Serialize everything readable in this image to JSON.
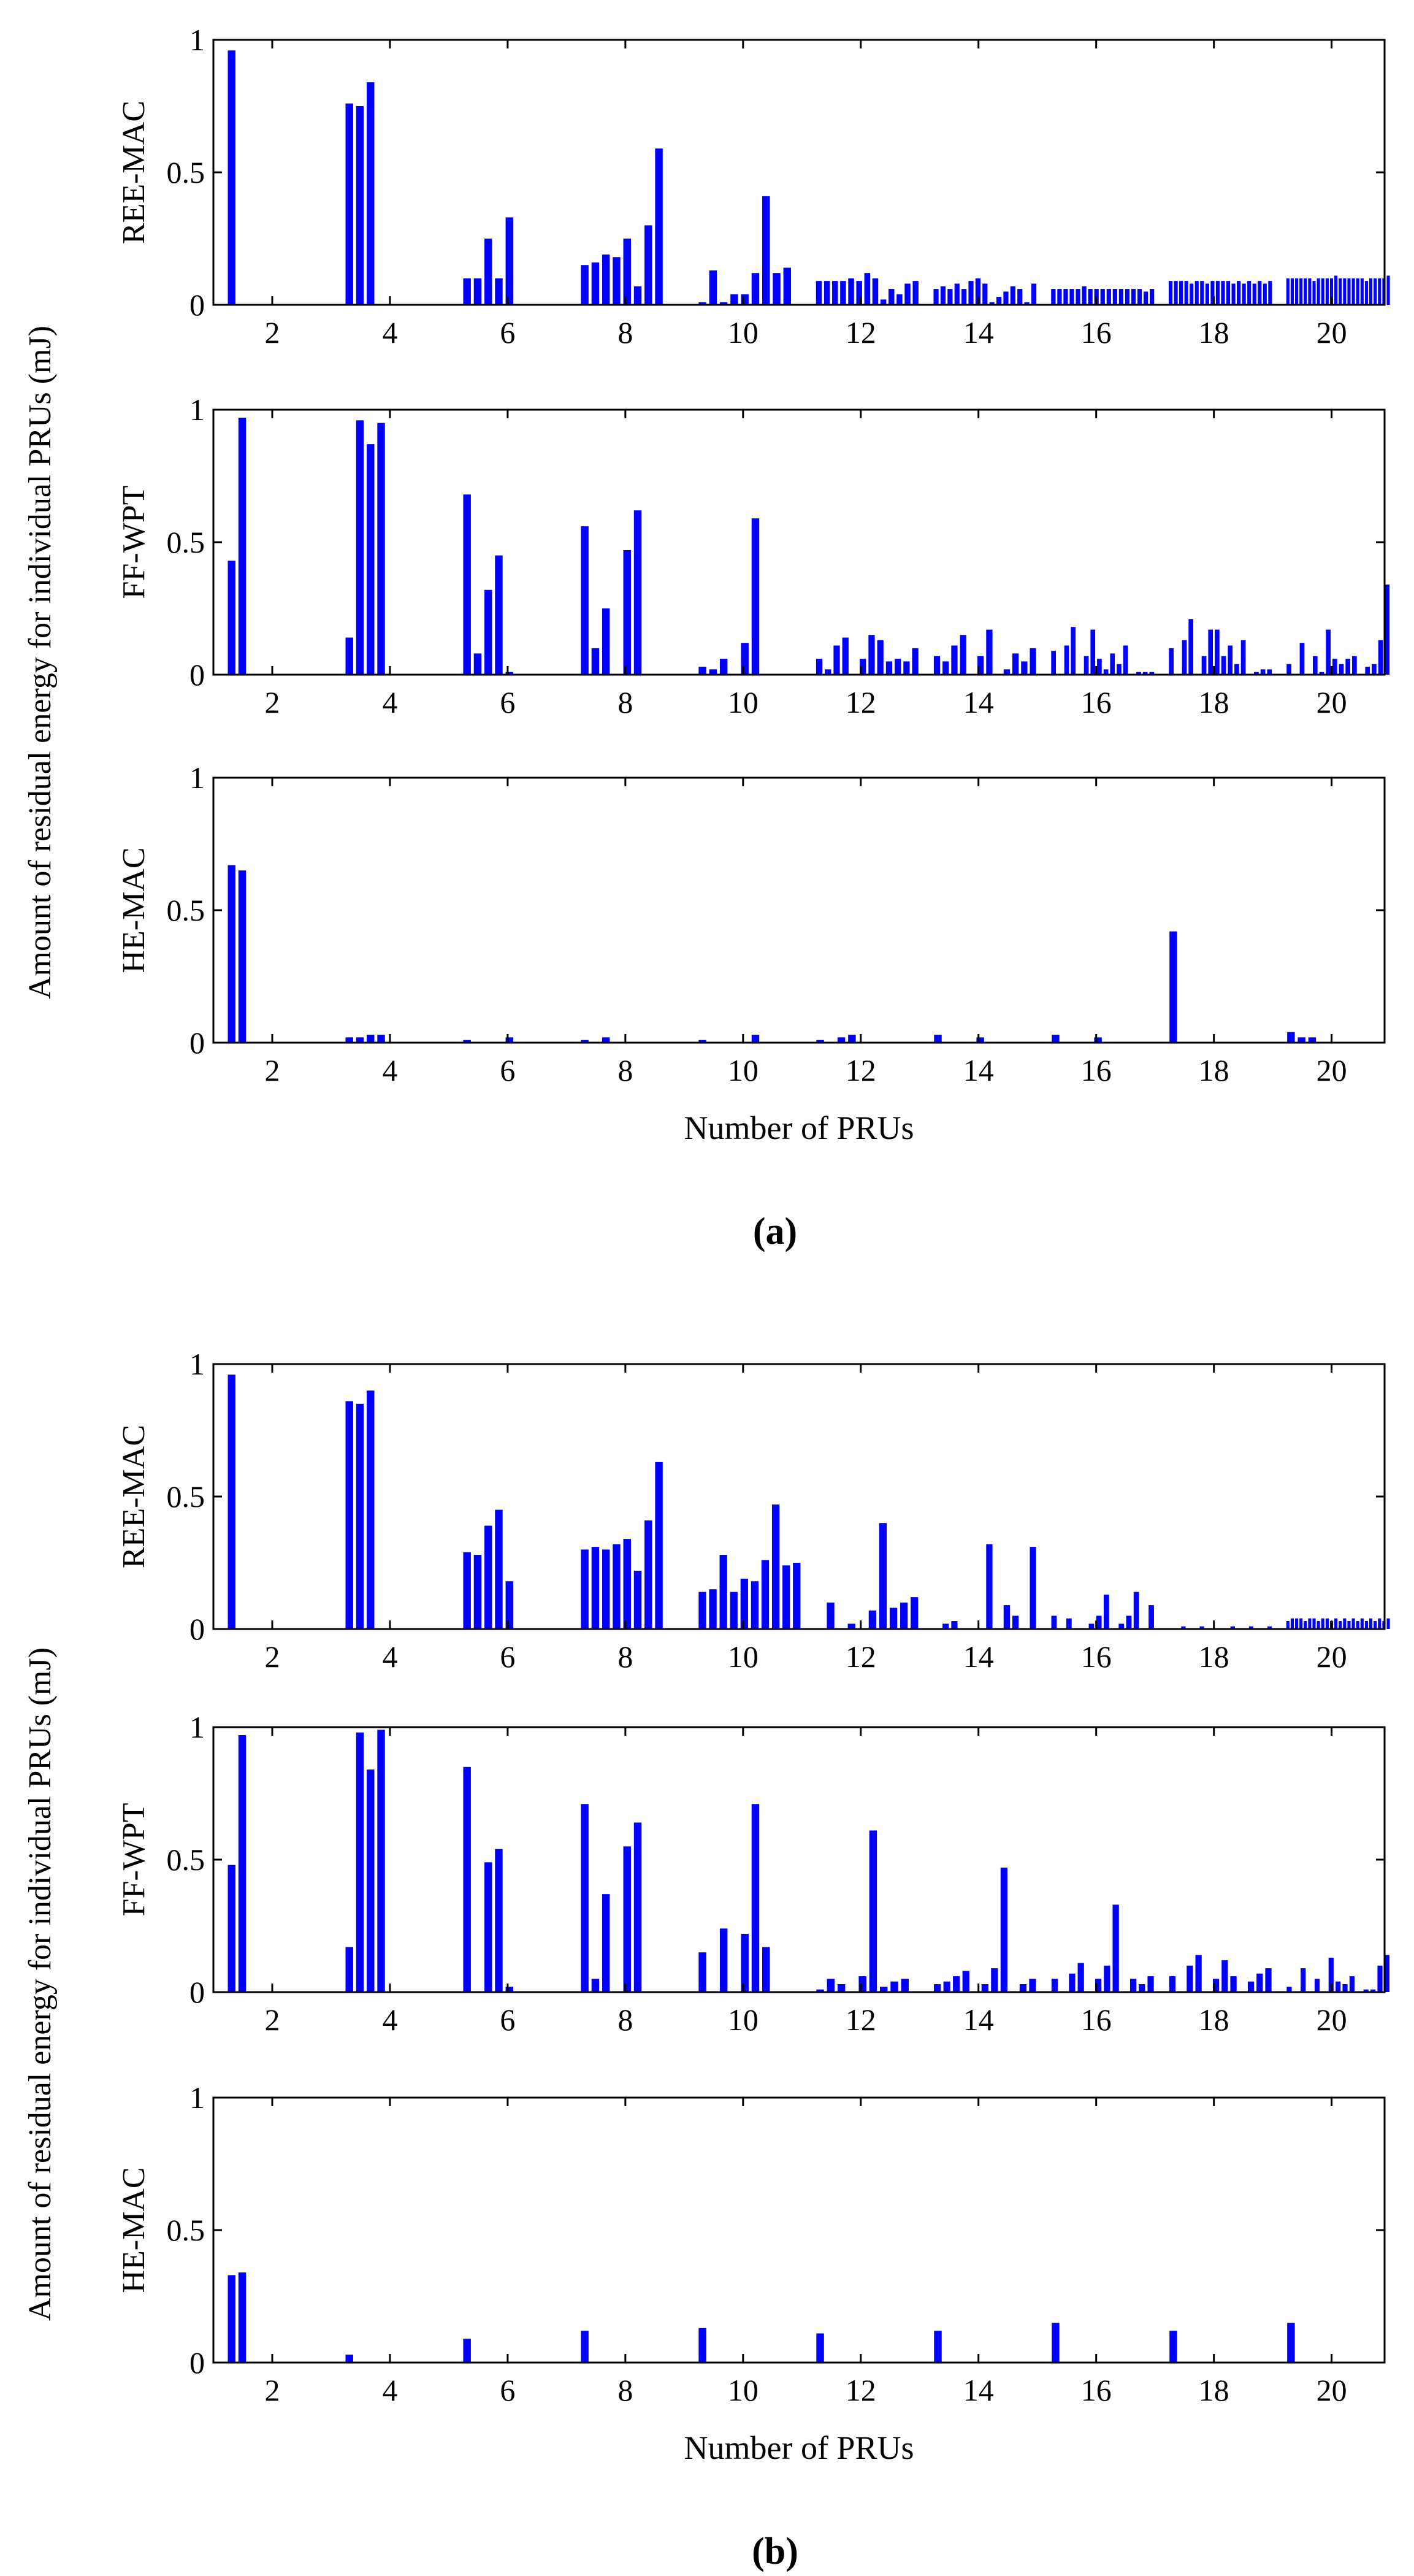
{
  "chart_data": [
    {
      "type": "bar",
      "panel": "a",
      "caption": "(a)",
      "title": "",
      "ylabel_shared": "Amount of residual energy for individual PRUs (mJ)",
      "xlabel": "Number of PRUs",
      "xticks": [
        2,
        4,
        6,
        8,
        10,
        12,
        14,
        16,
        18,
        20
      ],
      "xlim": [
        1,
        20.9
      ],
      "ylim": [
        0,
        1
      ],
      "yticks": [
        0,
        0.5,
        1
      ],
      "ytick_labels": [
        "0",
        "0.5",
        "1"
      ],
      "grid": false,
      "legend": "none",
      "series": [
        {
          "name": "REE-MAC",
          "groups": [
            {
              "x": 1,
              "values": [
                0.96
              ]
            },
            {
              "x": 3,
              "values": [
                0.76,
                0.75,
                0.84
              ]
            },
            {
              "x": 5,
              "values": [
                0.1,
                0.1,
                0.25,
                0.1,
                0.33
              ]
            },
            {
              "x": 7,
              "values": [
                0.15,
                0.16,
                0.19,
                0.18,
                0.25,
                0.07,
                0.3,
                0.59
              ]
            },
            {
              "x": 9,
              "values": [
                0.01,
                0.13,
                0.01,
                0.04,
                0.04,
                0.12,
                0.41,
                0.12,
                0.14
              ]
            },
            {
              "x": 11,
              "values": [
                0.09,
                0.09,
                0.09,
                0.09,
                0.1,
                0.09,
                0.12,
                0.1,
                0.02,
                0.06,
                0.04,
                0.08,
                0.09
              ]
            },
            {
              "x": 13,
              "values": [
                0.06,
                0.07,
                0.06,
                0.08,
                0.06,
                0.09,
                0.1,
                0.08,
                0.01,
                0.03,
                0.05,
                0.07,
                0.06,
                0.01,
                0.08
              ]
            },
            {
              "x": 15,
              "values": [
                0.06,
                0.06,
                0.06,
                0.06,
                0.06,
                0.07,
                0.06,
                0.06,
                0.06,
                0.06,
                0.06,
                0.06,
                0.06,
                0.06,
                0.06,
                0.05,
                0.06
              ]
            },
            {
              "x": 17,
              "values": [
                0.09,
                0.09,
                0.09,
                0.09,
                0.08,
                0.09,
                0.09,
                0.08,
                0.09,
                0.09,
                0.09,
                0.09,
                0.08,
                0.09,
                0.08,
                0.09,
                0.08,
                0.09,
                0.08,
                0.09
              ]
            },
            {
              "x": 19,
              "values": [
                0.1,
                0.1,
                0.1,
                0.1,
                0.1,
                0.1,
                0.09,
                0.1,
                0.1,
                0.1,
                0.1,
                0.11,
                0.1,
                0.1,
                0.1,
                0.1,
                0.1,
                0.1,
                0.09,
                0.1,
                0.1,
                0.1,
                0.1,
                0.11
              ]
            }
          ]
        },
        {
          "name": "FF-WPT",
          "groups": [
            {
              "x": 1,
              "values": [
                0.43,
                0.97
              ]
            },
            {
              "x": 3,
              "values": [
                0.14,
                0.96,
                0.87,
                0.95
              ]
            },
            {
              "x": 5,
              "values": [
                0.68,
                0.08,
                0.32,
                0.45,
                0.01
              ]
            },
            {
              "x": 7,
              "values": [
                0.56,
                0.1,
                0.25,
                0.0,
                0.47,
                0.62
              ]
            },
            {
              "x": 9,
              "values": [
                0.03,
                0.02,
                0.06,
                0.0,
                0.12,
                0.59
              ]
            },
            {
              "x": 11,
              "values": [
                0.06,
                0.02,
                0.11,
                0.14,
                0.0,
                0.06,
                0.15,
                0.13,
                0.05,
                0.06,
                0.05,
                0.1
              ]
            },
            {
              "x": 13,
              "values": [
                0.07,
                0.05,
                0.11,
                0.15,
                0.0,
                0.07,
                0.17,
                0.0,
                0.02,
                0.08,
                0.05,
                0.1
              ]
            },
            {
              "x": 15,
              "values": [
                0.09,
                0.0,
                0.11,
                0.18,
                0.0,
                0.07,
                0.17,
                0.06,
                0.02,
                0.08,
                0.04,
                0.11,
                0.0,
                0.01,
                0.01,
                0.01
              ]
            },
            {
              "x": 17,
              "values": [
                0.1,
                0.0,
                0.13,
                0.21,
                0.0,
                0.07,
                0.17,
                0.17,
                0.07,
                0.11,
                0.04,
                0.13,
                0.0,
                0.01,
                0.02,
                0.02
              ]
            },
            {
              "x": 19,
              "values": [
                0.04,
                0.0,
                0.12,
                0.0,
                0.07,
                0.01,
                0.17,
                0.06,
                0.04,
                0.06,
                0.07,
                0.0,
                0.03,
                0.04,
                0.13,
                0.34
              ]
            }
          ]
        },
        {
          "name": "HE-MAC",
          "groups": [
            {
              "x": 1,
              "values": [
                0.67,
                0.65
              ]
            },
            {
              "x": 3,
              "values": [
                0.02,
                0.02,
                0.03,
                0.03
              ]
            },
            {
              "x": 5,
              "values": [
                0.01,
                0.0,
                0.0,
                0.0,
                0.02
              ]
            },
            {
              "x": 7,
              "values": [
                0.01,
                0.0,
                0.02
              ]
            },
            {
              "x": 9,
              "values": [
                0.01,
                0.0,
                0.0,
                0.0,
                0.0,
                0.03
              ]
            },
            {
              "x": 11,
              "values": [
                0.01,
                0.0,
                0.02,
                0.03
              ]
            },
            {
              "x": 13,
              "values": [
                0.03,
                0.0,
                0.0,
                0.0,
                0.02
              ]
            },
            {
              "x": 15,
              "values": [
                0.03,
                0.0,
                0.0,
                0.0,
                0.02
              ]
            },
            {
              "x": 17,
              "values": [
                0.42
              ]
            },
            {
              "x": 19,
              "values": [
                0.04,
                0.02,
                0.02
              ]
            }
          ]
        }
      ]
    },
    {
      "type": "bar",
      "panel": "b",
      "caption": "(b)",
      "title": "",
      "ylabel_shared": "Amount of residual energy for individual PRUs (mJ)",
      "xlabel": "Number of PRUs",
      "xticks": [
        2,
        4,
        6,
        8,
        10,
        12,
        14,
        16,
        18,
        20
      ],
      "xlim": [
        1,
        20.9
      ],
      "ylim": [
        0,
        1
      ],
      "yticks": [
        0,
        0.5,
        1
      ],
      "ytick_labels": [
        "0",
        "0.5",
        "1"
      ],
      "grid": false,
      "legend": "none",
      "series": [
        {
          "name": "REE-MAC",
          "groups": [
            {
              "x": 1,
              "values": [
                0.96
              ]
            },
            {
              "x": 3,
              "values": [
                0.86,
                0.85,
                0.9
              ]
            },
            {
              "x": 5,
              "values": [
                0.29,
                0.28,
                0.39,
                0.45,
                0.18
              ]
            },
            {
              "x": 7,
              "values": [
                0.3,
                0.31,
                0.3,
                0.32,
                0.34,
                0.22,
                0.41,
                0.63
              ]
            },
            {
              "x": 9,
              "values": [
                0.14,
                0.15,
                0.28,
                0.14,
                0.19,
                0.18,
                0.26,
                0.47,
                0.24,
                0.25
              ]
            },
            {
              "x": 11,
              "values": [
                0.0,
                0.1,
                0.0,
                0.02,
                0.0,
                0.07,
                0.4,
                0.08,
                0.1,
                0.12
              ]
            },
            {
              "x": 13,
              "values": [
                0.0,
                0.02,
                0.03,
                0.0,
                0.0,
                0.0,
                0.32,
                0.0,
                0.09,
                0.05,
                0.0,
                0.31
              ]
            },
            {
              "x": 15,
              "values": [
                0.05,
                0.0,
                0.04,
                0.0,
                0.0,
                0.02,
                0.05,
                0.13,
                0.0,
                0.02,
                0.05,
                0.14,
                0.0,
                0.09
              ]
            },
            {
              "x": 17,
              "values": [
                0.0,
                0.0,
                0.01,
                0.0,
                0.0,
                0.01,
                0.0,
                0.0,
                0.0,
                0.0,
                0.01,
                0.0,
                0.0,
                0.01,
                0.0,
                0.0,
                0.01
              ]
            },
            {
              "x": 19,
              "values": [
                0.03,
                0.04,
                0.04,
                0.04,
                0.03,
                0.04,
                0.04,
                0.03,
                0.04,
                0.04,
                0.03,
                0.04,
                0.03,
                0.04,
                0.03,
                0.04,
                0.03,
                0.04,
                0.03,
                0.04,
                0.03,
                0.04,
                0.03,
                0.04
              ]
            }
          ]
        },
        {
          "name": "FF-WPT",
          "groups": [
            {
              "x": 1,
              "values": [
                0.48,
                0.97
              ]
            },
            {
              "x": 3,
              "values": [
                0.17,
                0.98,
                0.84,
                0.99
              ]
            },
            {
              "x": 5,
              "values": [
                0.85,
                0.0,
                0.49,
                0.54,
                0.02
              ]
            },
            {
              "x": 7,
              "values": [
                0.71,
                0.05,
                0.37,
                0.0,
                0.55,
                0.64
              ]
            },
            {
              "x": 9,
              "values": [
                0.15,
                0.0,
                0.24,
                0.0,
                0.22,
                0.71,
                0.17
              ]
            },
            {
              "x": 11,
              "values": [
                0.01,
                0.05,
                0.03,
                0.0,
                0.06,
                0.61,
                0.02,
                0.04,
                0.05
              ]
            },
            {
              "x": 13,
              "values": [
                0.03,
                0.04,
                0.06,
                0.08,
                0.0,
                0.03,
                0.09,
                0.47,
                0.0,
                0.03,
                0.05
              ]
            },
            {
              "x": 15,
              "values": [
                0.05,
                0.0,
                0.07,
                0.11,
                0.0,
                0.05,
                0.1,
                0.33,
                0.0,
                0.05,
                0.03,
                0.06
              ]
            },
            {
              "x": 17,
              "values": [
                0.06,
                0.0,
                0.1,
                0.14,
                0.0,
                0.05,
                0.12,
                0.06,
                0.0,
                0.04,
                0.07,
                0.09
              ]
            },
            {
              "x": 19,
              "values": [
                0.02,
                0.0,
                0.09,
                0.0,
                0.05,
                0.0,
                0.13,
                0.04,
                0.03,
                0.06,
                0.0,
                0.01,
                0.01,
                0.1,
                0.14
              ]
            }
          ]
        },
        {
          "name": "HE-MAC",
          "groups": [
            {
              "x": 1,
              "values": [
                0.33,
                0.34
              ]
            },
            {
              "x": 3,
              "values": [
                0.03
              ]
            },
            {
              "x": 5,
              "values": [
                0.09
              ]
            },
            {
              "x": 7,
              "values": [
                0.12
              ]
            },
            {
              "x": 9,
              "values": [
                0.13
              ]
            },
            {
              "x": 11,
              "values": [
                0.11
              ]
            },
            {
              "x": 13,
              "values": [
                0.12
              ]
            },
            {
              "x": 15,
              "values": [
                0.15
              ]
            },
            {
              "x": 17,
              "values": [
                0.12
              ]
            },
            {
              "x": 19,
              "values": [
                0.15
              ]
            }
          ]
        }
      ]
    }
  ]
}
